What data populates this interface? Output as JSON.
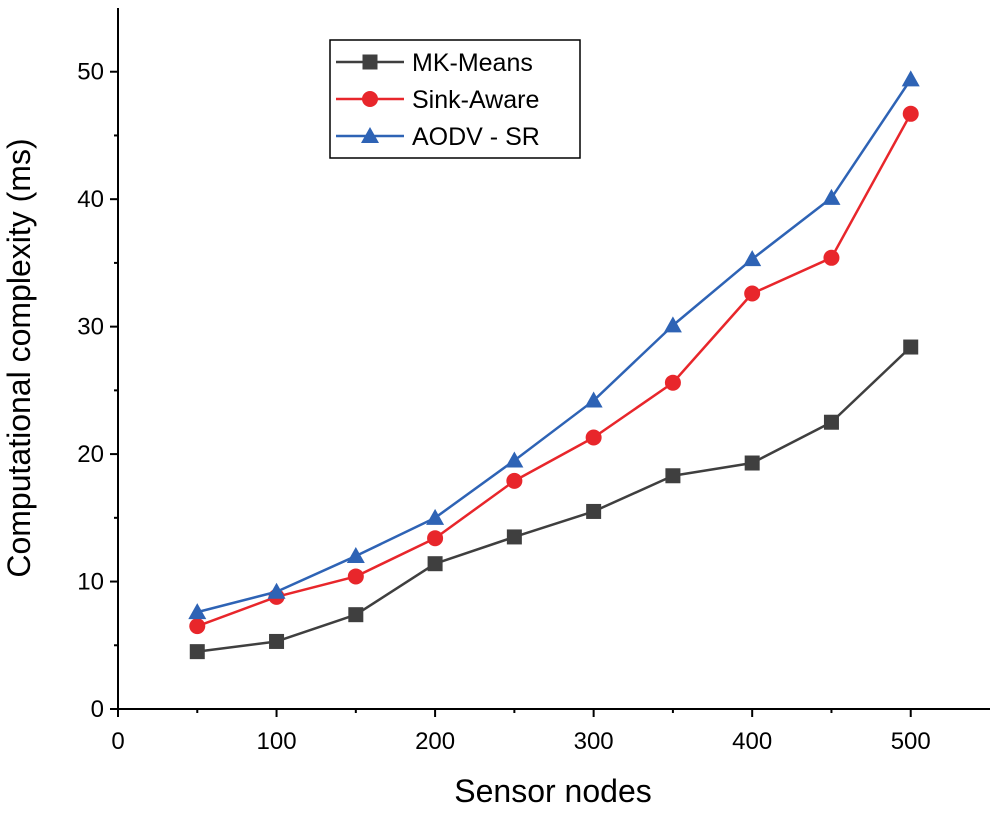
{
  "chart_data": {
    "type": "line",
    "title": "",
    "xlabel": "Sensor nodes",
    "ylabel": "Computational complexity (ms)",
    "xlim": [
      0,
      550
    ],
    "ylim": [
      0,
      55
    ],
    "xticks": [
      0,
      100,
      200,
      300,
      400,
      500
    ],
    "yticks": [
      0,
      10,
      20,
      30,
      40,
      50
    ],
    "x": [
      50,
      100,
      150,
      200,
      250,
      300,
      350,
      400,
      450,
      500
    ],
    "legend_position": "top-center",
    "series": [
      {
        "name": "MK-Means",
        "color": "#3f3f3f",
        "marker": "square",
        "values": [
          4.5,
          5.3,
          7.4,
          11.4,
          13.5,
          15.5,
          18.3,
          19.3,
          22.5,
          28.4
        ]
      },
      {
        "name": "Sink-Aware",
        "color": "#e8262b",
        "marker": "circle",
        "values": [
          6.5,
          8.8,
          10.4,
          13.4,
          17.9,
          21.3,
          25.6,
          32.6,
          35.4,
          46.7
        ]
      },
      {
        "name": "AODV - SR",
        "color": "#2e63b5",
        "marker": "triangle",
        "values": [
          7.6,
          9.2,
          12.0,
          15.0,
          19.5,
          24.2,
          30.1,
          35.3,
          40.1,
          49.4
        ]
      }
    ]
  }
}
